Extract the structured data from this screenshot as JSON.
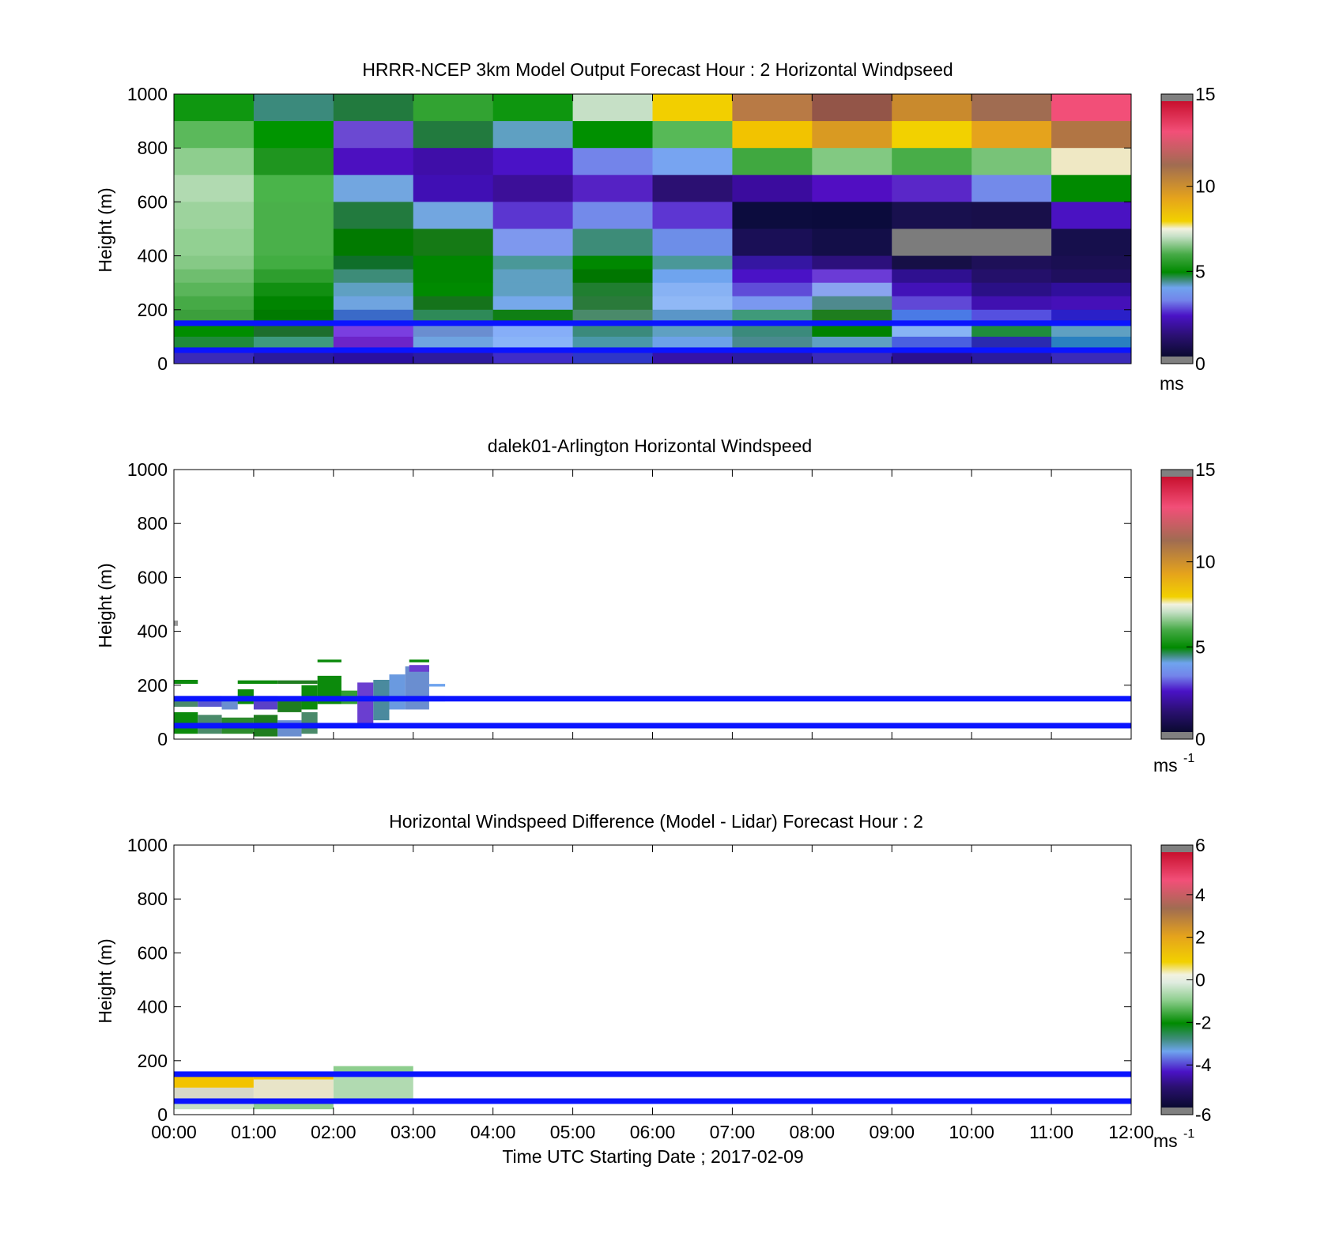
{
  "units_common": {
    "ms": "ms",
    "ms_base": "ms",
    "ms_exp": "-1"
  },
  "colors": {
    "lidar_line": "#0a14ff",
    "axis": "#000000",
    "background": "#ffffff"
  },
  "panel_height_m": [
    50,
    150
  ],
  "chart_data": [
    {
      "type": "heatmap",
      "title": "HRRR-NCEP 3km Model Output   Forecast Hour : 2 Horizontal Windpseed",
      "ylabel": "Height (m)",
      "xlabel": "",
      "ylim": [
        0,
        1000
      ],
      "yticks": [
        0,
        200,
        400,
        600,
        800,
        1000
      ],
      "xticks": [],
      "x_hours": [
        0,
        12
      ],
      "colorbar": {
        "min": 0,
        "max": 15,
        "ticks": [
          0,
          5,
          10,
          15
        ],
        "unit_base": "ms",
        "unit_exp": ""
      },
      "hlines_m": [
        50,
        150
      ],
      "columns_hours": [
        0,
        1,
        2,
        3,
        4,
        5,
        6,
        7,
        8,
        9,
        10,
        11
      ],
      "rows_m": [
        [
          900,
          1000
        ],
        [
          800,
          900
        ],
        [
          700,
          800
        ],
        [
          600,
          700
        ],
        [
          500,
          600
        ],
        [
          400,
          500
        ],
        [
          350,
          400
        ],
        [
          300,
          350
        ],
        [
          250,
          300
        ],
        [
          200,
          250
        ],
        [
          150,
          200
        ],
        [
          100,
          150
        ],
        [
          50,
          100
        ],
        [
          0,
          50
        ]
      ],
      "cells_hex": [
        [
          "#0f9710",
          "#3b8a7c",
          "#227a3e",
          "#32a332",
          "#0e960f",
          "#c6e0c6",
          "#f2cf00",
          "#b87a45",
          "#935548",
          "#c98a2d",
          "#a06c51",
          "#f24f78"
        ],
        [
          "#5bb95b",
          "#009500",
          "#6b49d2",
          "#227a3e",
          "#5fa0c2",
          "#009000",
          "#57b957",
          "#f2c300",
          "#d99a22",
          "#f2d100",
          "#e5a31c",
          "#b17544"
        ],
        [
          "#8ece8e",
          "#1f951f",
          "#4c10c0",
          "#3f0ea8",
          "#4a12c6",
          "#7384ea",
          "#77a4f1",
          "#40a840",
          "#82c982",
          "#48ad48",
          "#78c378",
          "#efe8c4"
        ],
        [
          "#b1dab1",
          "#4ab44a",
          "#72a6e0",
          "#400fb4",
          "#3c0f98",
          "#5522c4",
          "#2b1072",
          "#3b0c9e",
          "#510ec2",
          "#5a27c8",
          "#738aea",
          "#008a00"
        ],
        [
          "#9dd39d",
          "#4ab04a",
          "#227a3e",
          "#72a6e0",
          "#5b36d0",
          "#738aea",
          "#5d36d2",
          "#0c0c3e",
          "#0b0b3c",
          "#18104e",
          "#180f4a",
          "#4a12c2"
        ],
        [
          "#92d092",
          "#4ab04a",
          "#017a00",
          "#157a15",
          "#7e98ee",
          "#3d8c78",
          "#6d8ee8",
          "#1a0f56",
          "#130e48",
          "#7c7c7c",
          "#7c7c7c",
          "#160f4c"
        ],
        [
          "#86c986",
          "#42ad42",
          "#0f6f2a",
          "#008600",
          "#4a9898",
          "#008800",
          "#4a9898",
          "#3516a2",
          "#2c107c",
          "#160f46",
          "#1e1058",
          "#1a0f52"
        ],
        [
          "#6fbe6f",
          "#2e9e2e",
          "#3d8c78",
          "#008600",
          "#5fa0c2",
          "#007600",
          "#6fa4ee",
          "#4a12c6",
          "#6b3bd6",
          "#2f1090",
          "#24106a",
          "#1f0f5e"
        ],
        [
          "#5ab55a",
          "#118f11",
          "#5fa0c2",
          "#008a00",
          "#5fa0c2",
          "#207e30",
          "#88b2f4",
          "#5f4cd8",
          "#8aa4f0",
          "#4212b8",
          "#2a1086",
          "#300f9c"
        ],
        [
          "#46aa46",
          "#008400",
          "#6fa4e0",
          "#15731b",
          "#76a8ea",
          "#2a7a3a",
          "#90b8f6",
          "#7a98f0",
          "#4f8a8e",
          "#6048d6",
          "#4010b0",
          "#4510b8"
        ],
        [
          "#3c9f3c",
          "#007a00",
          "#3a6ac8",
          "#2e8a58",
          "#0f7f14",
          "#4a8a6a",
          "#5a96c8",
          "#3f9a7a",
          "#1e7d1e",
          "#4a7ae6",
          "#5550e0",
          "#2a20c8"
        ],
        [
          "#008d00",
          "#1d6e2d",
          "#7a3ee0",
          "#6a8ed0",
          "#86aef8",
          "#3b8a7c",
          "#5fa0c2",
          "#3b8a7c",
          "#008200",
          "#88b4f4",
          "#1f8c3c",
          "#5fa0c2"
        ],
        [
          "#1f8a3a",
          "#3e9a7e",
          "#6d24c8",
          "#6fa4e0",
          "#8ab4f8",
          "#4a98a8",
          "#6da2e8",
          "#4a8a8e",
          "#5fa0c2",
          "#4a60e0",
          "#2a2ab0",
          "#2a80c0"
        ],
        [
          "#3a2ab8",
          "#2a1a9e",
          "#2a0fa0",
          "#2d1a9e",
          "#3f2cc8",
          "#2e36c8",
          "#3412a8",
          "#2c1aa0",
          "#3a2ab8",
          "#2a1090",
          "#2a1a9e",
          "#3a2ab8"
        ]
      ]
    },
    {
      "type": "heatmap",
      "title": "dalek01-Arlington  Horizontal Windspeed",
      "ylabel": "Height (m)",
      "xlabel": "",
      "ylim": [
        0,
        1000
      ],
      "yticks": [
        0,
        200,
        400,
        600,
        800,
        1000
      ],
      "xticks": [],
      "x_hours": [
        0,
        12
      ],
      "colorbar": {
        "min": 0,
        "max": 15,
        "ticks": [
          0,
          5,
          10,
          15
        ],
        "unit_base": "ms",
        "unit_exp": "-1"
      },
      "hlines_m": [
        50,
        150
      ],
      "segments": [
        {
          "x0": 0.0,
          "x1": 0.3,
          "y0": 205,
          "y1": 220,
          "c": "#0c8a0c"
        },
        {
          "x0": 0.8,
          "x1": 1.3,
          "y0": 205,
          "y1": 218,
          "c": "#0c8a0c"
        },
        {
          "x0": 1.3,
          "x1": 1.8,
          "y0": 205,
          "y1": 218,
          "c": "#1f7d1f"
        },
        {
          "x0": 0.0,
          "x1": 1.8,
          "y0": 140,
          "y1": 200,
          "c": "#ffffff"
        },
        {
          "x0": 0.0,
          "x1": 0.3,
          "y0": 120,
          "y1": 160,
          "c": "#4a8a6a"
        },
        {
          "x0": 0.3,
          "x1": 0.6,
          "y0": 120,
          "y1": 160,
          "c": "#5a58d0"
        },
        {
          "x0": 0.6,
          "x1": 0.8,
          "y0": 110,
          "y1": 150,
          "c": "#6a8ed0"
        },
        {
          "x0": 0.8,
          "x1": 1.0,
          "y0": 130,
          "y1": 185,
          "c": "#0c8a0c"
        },
        {
          "x0": 1.0,
          "x1": 1.3,
          "y0": 110,
          "y1": 160,
          "c": "#5a40c8"
        },
        {
          "x0": 1.3,
          "x1": 1.6,
          "y0": 100,
          "y1": 150,
          "c": "#1f7d1f"
        },
        {
          "x0": 1.6,
          "x1": 1.8,
          "y0": 110,
          "y1": 200,
          "c": "#0c8a0c"
        },
        {
          "x0": 1.8,
          "x1": 2.1,
          "y0": 130,
          "y1": 235,
          "c": "#0c8a0c"
        },
        {
          "x0": 1.8,
          "x1": 2.1,
          "y0": 285,
          "y1": 295,
          "c": "#0c8a0c"
        },
        {
          "x0": 2.1,
          "x1": 2.3,
          "y0": 130,
          "y1": 180,
          "c": "#34a034"
        },
        {
          "x0": 2.3,
          "x1": 2.5,
          "y0": 60,
          "y1": 210,
          "c": "#6a3ed0"
        },
        {
          "x0": 2.5,
          "x1": 2.7,
          "y0": 70,
          "y1": 220,
          "c": "#4a8a9e"
        },
        {
          "x0": 2.7,
          "x1": 2.9,
          "y0": 110,
          "y1": 240,
          "c": "#6a9ae0"
        },
        {
          "x0": 2.9,
          "x1": 3.2,
          "y0": 110,
          "y1": 270,
          "c": "#6a8ed0"
        },
        {
          "x0": 2.95,
          "x1": 3.2,
          "y0": 250,
          "y1": 275,
          "c": "#6a3ed0"
        },
        {
          "x0": 2.95,
          "x1": 3.2,
          "y0": 285,
          "y1": 295,
          "c": "#0c8a0c"
        },
        {
          "x0": 3.2,
          "x1": 3.4,
          "y0": 195,
          "y1": 205,
          "c": "#6fa4ee"
        },
        {
          "x0": 3.2,
          "x1": 3.4,
          "y0": 140,
          "y1": 160,
          "c": "#6fa4ee"
        },
        {
          "x0": 0.0,
          "x1": 0.3,
          "y0": 20,
          "y1": 100,
          "c": "#0c8a0c"
        },
        {
          "x0": 0.3,
          "x1": 0.6,
          "y0": 20,
          "y1": 90,
          "c": "#4a8a6a"
        },
        {
          "x0": 0.6,
          "x1": 1.0,
          "y0": 20,
          "y1": 80,
          "c": "#2c8a2c"
        },
        {
          "x0": 1.0,
          "x1": 1.3,
          "y0": 10,
          "y1": 90,
          "c": "#1f7d1f"
        },
        {
          "x0": 1.3,
          "x1": 1.6,
          "y0": 10,
          "y1": 70,
          "c": "#6a8ed0"
        },
        {
          "x0": 1.6,
          "x1": 1.8,
          "y0": 20,
          "y1": 100,
          "c": "#4a8a6a"
        },
        {
          "x0": 0.0,
          "x1": 0.05,
          "y0": 420,
          "y1": 440,
          "c": "#9a9a9a"
        }
      ]
    },
    {
      "type": "heatmap",
      "title": "Horizontal Windspeed Difference (Model - Lidar) Forecast Hour : 2",
      "ylabel": "Height (m)",
      "xlabel": "Time UTC  Starting Date ; 2017-02-09",
      "ylim": [
        0,
        1000
      ],
      "yticks": [
        0,
        200,
        400,
        600,
        800,
        1000
      ],
      "xticks": [
        "00:00",
        "01:00",
        "02:00",
        "03:00",
        "04:00",
        "05:00",
        "06:00",
        "07:00",
        "08:00",
        "09:00",
        "10:00",
        "11:00",
        "12:00"
      ],
      "x_hours": [
        0,
        12
      ],
      "colorbar": {
        "min": -6,
        "max": 6,
        "ticks": [
          -6,
          -4,
          -2,
          0,
          2,
          4,
          6
        ],
        "unit_base": "ms",
        "unit_exp": "-1"
      },
      "hlines_m": [
        50,
        150
      ],
      "segments": [
        {
          "x0": 0.0,
          "x1": 1.0,
          "y0": 100,
          "y1": 150,
          "c": "#f2c300"
        },
        {
          "x0": 0.0,
          "x1": 1.0,
          "y0": 60,
          "y1": 100,
          "c": "#d8d8c8"
        },
        {
          "x0": 0.0,
          "x1": 1.0,
          "y0": 20,
          "y1": 50,
          "c": "#c6e0c6"
        },
        {
          "x0": 1.0,
          "x1": 2.0,
          "y0": 130,
          "y1": 150,
          "c": "#f2c300"
        },
        {
          "x0": 1.0,
          "x1": 2.0,
          "y0": 60,
          "y1": 130,
          "c": "#e8e4c8"
        },
        {
          "x0": 1.0,
          "x1": 2.0,
          "y0": 20,
          "y1": 45,
          "c": "#8ece8e"
        },
        {
          "x0": 2.0,
          "x1": 3.0,
          "y0": 160,
          "y1": 180,
          "c": "#8ece8e"
        },
        {
          "x0": 2.0,
          "x1": 3.0,
          "y0": 60,
          "y1": 150,
          "c": "#b1dab1"
        }
      ]
    }
  ]
}
